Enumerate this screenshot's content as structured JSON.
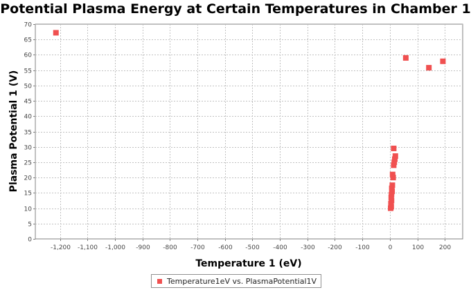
{
  "chart_data": {
    "type": "scatter",
    "title": "Potential Plasma Energy at Certain Temperatures in Chamber 1",
    "xlabel": "Temperature 1 (eV)",
    "ylabel": "Plasma Potential 1 (V)",
    "xlim": [
      -1290,
      265
    ],
    "ylim": [
      0,
      70
    ],
    "xticks": [
      -1200,
      -1100,
      -1000,
      -900,
      -800,
      -700,
      -600,
      -500,
      -400,
      -300,
      -200,
      -100,
      0,
      100,
      200
    ],
    "xtick_labels": [
      "-1,200",
      "-1,100",
      "-1,000",
      "-900",
      "-800",
      "-700",
      "-600",
      "-500",
      "-400",
      "-300",
      "-200",
      "-100",
      "0",
      "100",
      "200"
    ],
    "yticks": [
      0,
      5,
      10,
      15,
      20,
      25,
      30,
      35,
      40,
      45,
      50,
      55,
      60,
      65,
      70
    ],
    "ytick_labels": [
      "0",
      "5",
      "10",
      "15",
      "20",
      "25",
      "30",
      "35",
      "40",
      "45",
      "50",
      "55",
      "60",
      "65",
      "70"
    ],
    "grid": true,
    "legend_position": "bottom",
    "series": [
      {
        "name": "Temperature1eV vs. PlasmaPotential1V",
        "color": "#f05050",
        "marker": "square",
        "points": [
          {
            "x": -1215,
            "y": 67.2
          },
          {
            "x": 58,
            "y": 59.0
          },
          {
            "x": 142,
            "y": 55.8
          },
          {
            "x": 193,
            "y": 57.9
          },
          {
            "x": 14,
            "y": 29.5
          },
          {
            "x": 20,
            "y": 27.0
          },
          {
            "x": 18,
            "y": 26.0
          },
          {
            "x": 16,
            "y": 25.0
          },
          {
            "x": 14,
            "y": 24.0
          },
          {
            "x": 10,
            "y": 21.0
          },
          {
            "x": 12,
            "y": 20.0
          },
          {
            "x": 9,
            "y": 17.5
          },
          {
            "x": 7,
            "y": 16.5
          },
          {
            "x": 8,
            "y": 15.5
          },
          {
            "x": 6,
            "y": 14.5
          },
          {
            "x": 5,
            "y": 13.5
          },
          {
            "x": 6,
            "y": 12.5
          },
          {
            "x": 4,
            "y": 11.5
          },
          {
            "x": 5,
            "y": 10.5
          },
          {
            "x": 3,
            "y": 10.0
          }
        ]
      }
    ]
  },
  "legend": {
    "label": "Temperature1eV vs. PlasmaPotential1V"
  }
}
